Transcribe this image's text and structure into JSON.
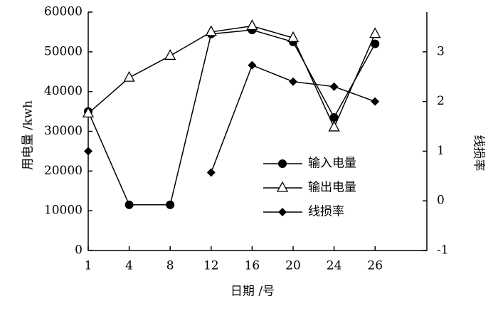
{
  "chart_data": {
    "type": "line",
    "x_label": "日期 /号",
    "y_label": "用电量 /kwh",
    "y2_label": "线损率",
    "categories": [
      "1",
      "4",
      "8",
      "12",
      "16",
      "20",
      "24",
      "26"
    ],
    "ylim": [
      0,
      60000
    ],
    "yticks": [
      0,
      10000,
      20000,
      30000,
      40000,
      50000,
      60000
    ],
    "y2lim": [
      -1,
      3.8
    ],
    "y2ticks": [
      -1,
      0,
      1,
      2,
      3
    ],
    "series": [
      {
        "name": "输入电量",
        "color": "#000000",
        "marker": "circle",
        "values": [
          35000,
          11500,
          11500,
          54500,
          55500,
          52500,
          33500,
          52000
        ]
      },
      {
        "name": "输出电量",
        "color": "#000000",
        "marker": "triangle",
        "values": [
          34500,
          43500,
          49000,
          55000,
          56500,
          53500,
          31000,
          54500
        ]
      },
      {
        "name": "线损率",
        "color": "#000000",
        "marker": "diamond",
        "axis": "y2",
        "values": [
          1.0,
          null,
          null,
          0.57,
          2.73,
          2.4,
          2.3,
          2.0
        ]
      }
    ]
  }
}
